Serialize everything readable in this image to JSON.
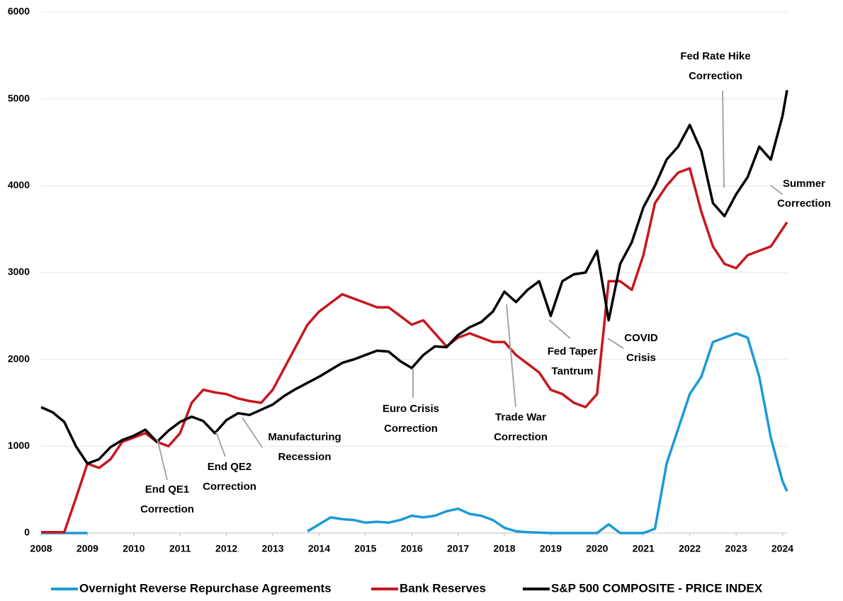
{
  "chart_data": {
    "type": "line",
    "x": [
      2008,
      2008.25,
      2008.5,
      2008.75,
      2009,
      2009.25,
      2009.5,
      2009.75,
      2010,
      2010.25,
      2010.5,
      2010.75,
      2011,
      2011.25,
      2011.5,
      2011.75,
      2012,
      2012.25,
      2012.5,
      2012.75,
      2013,
      2013.25,
      2013.5,
      2013.75,
      2014,
      2014.25,
      2014.5,
      2014.75,
      2015,
      2015.25,
      2015.5,
      2015.75,
      2016,
      2016.25,
      2016.5,
      2016.75,
      2017,
      2017.25,
      2017.5,
      2017.75,
      2018,
      2018.25,
      2018.5,
      2018.75,
      2019,
      2019.25,
      2019.5,
      2019.75,
      2020,
      2020.25,
      2020.5,
      2020.75,
      2021,
      2021.25,
      2021.5,
      2021.75,
      2022,
      2022.25,
      2022.5,
      2022.75,
      2023,
      2023.25,
      2023.5,
      2023.75,
      2024,
      2024.1
    ],
    "series": [
      {
        "name": "Overnight Reverse Repurchase Agreements",
        "color": "#1a9ad6",
        "values": [
          0,
          0,
          0,
          0,
          0,
          null,
          null,
          null,
          null,
          null,
          null,
          null,
          null,
          null,
          null,
          null,
          null,
          null,
          null,
          null,
          null,
          null,
          null,
          20,
          100,
          180,
          160,
          150,
          120,
          130,
          120,
          150,
          200,
          180,
          200,
          250,
          280,
          220,
          200,
          150,
          60,
          20,
          10,
          5,
          0,
          0,
          0,
          0,
          0,
          100,
          0,
          0,
          0,
          50,
          800,
          1200,
          1600,
          1800,
          2200,
          2250,
          2300,
          2250,
          1800,
          1100,
          600,
          480
        ]
      },
      {
        "name": "Bank Reserves",
        "color": "#c8161d",
        "values": [
          10,
          10,
          10,
          400,
          800,
          750,
          850,
          1050,
          1100,
          1150,
          1050,
          1000,
          1150,
          1500,
          1650,
          1620,
          1600,
          1550,
          1520,
          1500,
          1650,
          1900,
          2150,
          2400,
          2550,
          2650,
          2750,
          2700,
          2650,
          2600,
          2600,
          2500,
          2400,
          2450,
          2300,
          2150,
          2250,
          2300,
          2250,
          2200,
          2200,
          2050,
          1950,
          1850,
          1650,
          1600,
          1500,
          1450,
          1600,
          2900,
          2900,
          2800,
          3200,
          3800,
          4000,
          4150,
          4200,
          3700,
          3300,
          3100,
          3050,
          3200,
          3250,
          3300,
          3500,
          3580
        ]
      },
      {
        "name": "S&P 500 COMPOSITE - PRICE INDEX",
        "color": "#000000",
        "values": [
          1450,
          1390,
          1280,
          1000,
          800,
          850,
          990,
          1070,
          1120,
          1190,
          1050,
          1180,
          1280,
          1340,
          1290,
          1150,
          1300,
          1380,
          1360,
          1420,
          1480,
          1580,
          1660,
          1730,
          1800,
          1880,
          1960,
          2000,
          2050,
          2100,
          2090,
          1980,
          1900,
          2050,
          2150,
          2140,
          2280,
          2370,
          2430,
          2550,
          2780,
          2660,
          2800,
          2900,
          2500,
          2900,
          2980,
          3000,
          3250,
          2450,
          3100,
          3350,
          3750,
          4000,
          4300,
          4450,
          4700,
          4400,
          3800,
          3650,
          3900,
          4100,
          4450,
          4300,
          4800,
          5100
        ]
      }
    ],
    "xlim": [
      2008,
      2024.1
    ],
    "xticks": [
      2008,
      2009,
      2010,
      2011,
      2012,
      2013,
      2014,
      2015,
      2016,
      2017,
      2018,
      2019,
      2020,
      2021,
      2022,
      2023,
      2024
    ],
    "ylim": [
      0,
      6000
    ],
    "yticks": [
      0,
      1000,
      2000,
      3000,
      4000,
      5000,
      6000
    ],
    "grid": true,
    "legend": "bottom",
    "annotations": [
      {
        "lines": [
          "End QE1",
          "Correction"
        ]
      },
      {
        "lines": [
          "End QE2",
          "Correction"
        ]
      },
      {
        "lines": [
          "Manufacturing",
          "Recession"
        ]
      },
      {
        "lines": [
          "Euro Crisis",
          "Correction"
        ]
      },
      {
        "lines": [
          "Trade War",
          "Correction"
        ]
      },
      {
        "lines": [
          "Fed Taper",
          "Tantrum"
        ]
      },
      {
        "lines": [
          "COVID",
          "Crisis"
        ]
      },
      {
        "lines": [
          "Fed Rate Hike",
          "Correction"
        ]
      },
      {
        "lines": [
          "Summer",
          "Correction"
        ]
      }
    ]
  }
}
